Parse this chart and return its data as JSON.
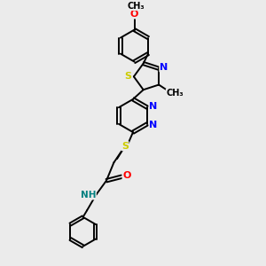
{
  "background_color": "#ebebeb",
  "bond_color": "#000000",
  "atom_colors": {
    "N": "#0000ff",
    "O": "#ff0000",
    "S": "#cccc00",
    "NH": "#008080",
    "C": "#000000"
  },
  "figsize": [
    3.0,
    3.0
  ],
  "dpi": 100
}
